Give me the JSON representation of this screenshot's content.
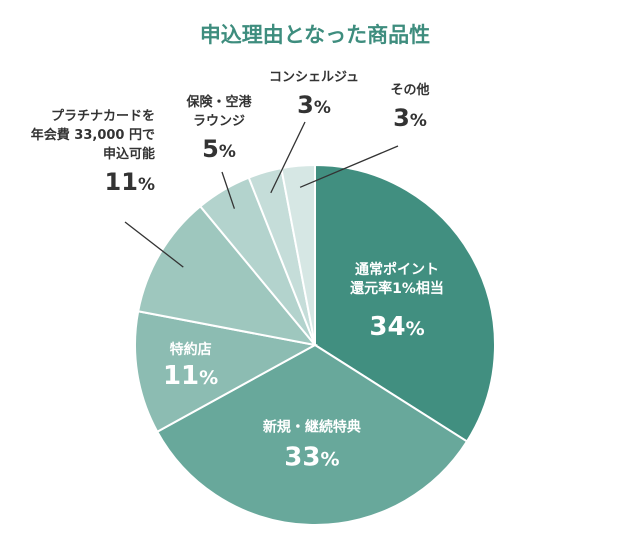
{
  "chart_data": {
    "type": "pie",
    "title": "申込理由となった商品性",
    "slices": [
      {
        "label": "通常ポイント還元率1%相当",
        "label_lines": [
          "通常ポイント",
          "還元率1%相当"
        ],
        "value": 34,
        "value_text": "34",
        "color": "#418f80"
      },
      {
        "label": "新規・継続特典",
        "label_lines": [
          "新規・継続特典"
        ],
        "value": 33,
        "value_text": "33",
        "color": "#68a89b"
      },
      {
        "label": "特約店",
        "label_lines": [
          "特約店"
        ],
        "value": 11,
        "value_text": "11",
        "color": "#8cbcb2"
      },
      {
        "label": "プラチナカードを年会費 33,000 円で申込可能",
        "label_lines": [
          "プラチナカードを",
          "年会費 33,000 円で",
          "申込可能"
        ],
        "value": 11,
        "value_text": "11",
        "color": "#9ec7be"
      },
      {
        "label": "保険・空港ラウンジ",
        "label_lines": [
          "保険・空港",
          "ラウンジ"
        ],
        "value": 5,
        "value_text": "5",
        "color": "#b3d3cd"
      },
      {
        "label": "コンシェルジュ",
        "label_lines": [
          "コンシェルジュ"
        ],
        "value": 3,
        "value_text": "3",
        "color": "#c5ddd9"
      },
      {
        "label": "その他",
        "label_lines": [
          "その他"
        ],
        "value": 3,
        "value_text": "3",
        "color": "#d6e7e4"
      }
    ],
    "unit": "%",
    "title_color": "#3e8d7e",
    "outline_color": "#ffffff",
    "leader_color": "#333333"
  }
}
